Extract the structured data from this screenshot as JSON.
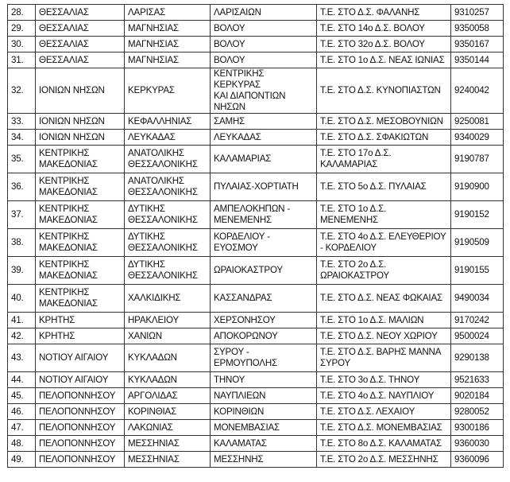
{
  "rows": [
    {
      "num": "28.",
      "region": "ΘΕΣΣΑΛΙΑΣ",
      "unit": "ΛΑΡΙΣΑΣ",
      "municipality": "ΛΑΡΙΣΑΙΩΝ",
      "school": "Τ.Ε. ΣΤΟ Δ.Σ. ΦΑΛΑΝΗΣ",
      "code": "9310257"
    },
    {
      "num": "29.",
      "region": "ΘΕΣΣΑΛΙΑΣ",
      "unit": "ΜΑΓΝΗΣΙΑΣ",
      "municipality": "ΒΟΛΟΥ",
      "school": "Τ.Ε. ΣΤΟ 14ο Δ.Σ. ΒΟΛΟΥ",
      "code": "9350058"
    },
    {
      "num": "30.",
      "region": "ΘΕΣΣΑΛΙΑΣ",
      "unit": "ΜΑΓΝΗΣΙΑΣ",
      "municipality": "ΒΟΛΟΥ",
      "school": "Τ.Ε. ΣΤΟ 32ο Δ.Σ. ΒΟΛΟΥ",
      "code": "9350167"
    },
    {
      "num": "31.",
      "region": "ΘΕΣΣΑΛΙΑΣ",
      "unit": "ΜΑΓΝΗΣΙΑΣ",
      "municipality": "ΒΟΛΟΥ",
      "school": "Τ.Ε. ΣΤΟ 1ο Δ.Σ. ΝΕΑΣ ΙΩΝΙΑΣ",
      "code": "9350144"
    },
    {
      "num": "32.",
      "region": "ΙΟΝΙΩΝ ΝΗΣΩΝ",
      "unit": "ΚΕΡΚΥΡΑΣ",
      "municipality": "ΚΕΝΤΡΙΚΗΣ ΚΕΡΚΥΡΑΣ\nΚΑΙ ΔΙΑΠΟΝΤΙΩΝ\nΝΗΣΩΝ",
      "school": "Τ.Ε. ΣΤΟ Δ.Σ. ΚΥΝΟΠΙΑΣΤΩΝ",
      "code": "9240042"
    },
    {
      "num": "33.",
      "region": "ΙΟΝΙΩΝ ΝΗΣΩΝ",
      "unit": "ΚΕΦΑΛΛΗΝΙΑΣ",
      "municipality": "ΣΑΜΗΣ",
      "school": "Τ.Ε. ΣΤΟ Δ.Σ. ΜΕΣΟΒΟΥΝΙΩΝ",
      "code": "9250081"
    },
    {
      "num": "34.",
      "region": "ΙΟΝΙΩΝ ΝΗΣΩΝ",
      "unit": "ΛΕΥΚΑΔΑΣ",
      "municipality": "ΛΕΥΚΑΔΑΣ",
      "school": "Τ.Ε. ΣΤΟ Δ.Σ. ΣΦΑΚΙΩΤΩΝ",
      "code": "9340029"
    },
    {
      "num": "35.",
      "region": "ΚΕΝΤΡΙΚΗΣ\nΜΑΚΕΔΟΝΙΑΣ",
      "unit": "ΑΝΑΤΟΛΙΚΗΣ\nΘΕΣΣΑΛΟΝΙΚΗΣ",
      "municipality": "ΚΑΛΑΜΑΡΙΑΣ",
      "school": "Τ.Ε. ΣΤΟ 17ο Δ.Σ.\nΚΑΛΑΜΑΡΙΑΣ",
      "code": "9190787"
    },
    {
      "num": "36.",
      "region": "ΚΕΝΤΡΙΚΗΣ\nΜΑΚΕΔΟΝΙΑΣ",
      "unit": "ΑΝΑΤΟΛΙΚΗΣ\nΘΕΣΣΑΛΟΝΙΚΗΣ",
      "municipality": "ΠΥΛΑΙΑΣ-ΧΟΡΤΙΑΤΗ",
      "school": "Τ.Ε. ΣΤΟ 5ο Δ.Σ. ΠΥΛΑΙΑΣ",
      "code": "9190900"
    },
    {
      "num": "37.",
      "region": "ΚΕΝΤΡΙΚΗΣ\nΜΑΚΕΔΟΝΙΑΣ",
      "unit": "ΔΥΤΙΚΗΣ\nΘΕΣΣΑΛΟΝΙΚΗΣ",
      "municipality": "ΑΜΠΕΛΟΚΗΠΩΝ -\nΜΕΝΕΜΕΝΗΣ",
      "school": "Τ.Ε. ΣΤΟ 1ο Δ.Σ.\nΜΕΝΕΜΕΝΗΣ",
      "code": "9190152"
    },
    {
      "num": "38.",
      "region": "ΚΕΝΤΡΙΚΗΣ\nΜΑΚΕΔΟΝΙΑΣ",
      "unit": "ΔΥΤΙΚΗΣ\nΘΕΣΣΑΛΟΝΙΚΗΣ",
      "municipality": "ΚΟΡΔΕΛΙΟΥ -\nΕΥΟΣΜΟΥ",
      "school": "Τ.Ε. ΣΤΟ 4ο Δ.Σ. ΕΛΕΥΘΕΡΙΟΥ\n- ΚΟΡΔΕΛΙΟΥ",
      "code": "9190509"
    },
    {
      "num": "39.",
      "region": "ΚΕΝΤΡΙΚΗΣ\nΜΑΚΕΔΟΝΙΑΣ",
      "unit": "ΔΥΤΙΚΗΣ\nΘΕΣΣΑΛΟΝΙΚΗΣ",
      "municipality": "ΩΡΑΙΟΚΑΣΤΡΟΥ",
      "school": "Τ.Ε. ΣΤΟ 2ο Δ.Σ.\nΩΡΑΙΟΚΑΣΤΡΟΥ",
      "code": "9190155"
    },
    {
      "num": "40.",
      "region": "ΚΕΝΤΡΙΚΗΣ\nΜΑΚΕΔΟΝΙΑΣ",
      "unit": "ΧΑΛΚΙΔΙΚΗΣ",
      "municipality": "ΚΑΣΣΑΝΔΡΑΣ",
      "school": "Τ.Ε. ΣΤΟ Δ.Σ. ΝΕΑΣ ΦΩΚΑΙΑΣ",
      "code": "9490034"
    },
    {
      "num": "41.",
      "region": "ΚΡΗΤΗΣ",
      "unit": "ΗΡΑΚΛΕΙΟΥ",
      "municipality": "ΧΕΡΣΟΝΗΣΟΥ",
      "school": "Τ.Ε. ΣΤΟ 1ο Δ.Σ. ΜΑΛΙΩΝ",
      "code": "9170242"
    },
    {
      "num": "42.",
      "region": "ΚΡΗΤΗΣ",
      "unit": "ΧΑΝΙΩΝ",
      "municipality": "ΑΠΟΚΟΡΩΝΟΥ",
      "school": "Τ.Ε. ΣΤΟ Δ.Σ. ΝΕΟΥ ΧΩΡΙΟΥ",
      "code": "9500024"
    },
    {
      "num": "43.",
      "region": "ΝΟΤΙΟΥ ΑΙΓΑΙΟΥ",
      "unit": "ΚΥΚΛΑΔΩΝ",
      "municipality": "ΣΥΡΟΥ -\nΕΡΜΟΥΠΟΛΗΣ",
      "school": "Τ.Ε. ΣΤΟ Δ.Σ. ΒΑΡΗΣ ΜΑΝΝΑ\nΣΥΡΟΥ",
      "code": "9290138"
    },
    {
      "num": "44.",
      "region": "ΝΟΤΙΟΥ ΑΙΓΑΙΟΥ",
      "unit": "ΚΥΚΛΑΔΩΝ",
      "municipality": "ΤΗΝΟΥ",
      "school": "Τ.Ε. ΣΤΟ 3ο Δ.Σ. ΤΗΝΟΥ",
      "code": "9521633"
    },
    {
      "num": "45.",
      "region": "ΠΕΛΟΠΟΝΝΗΣΟΥ",
      "unit": "ΑΡΓΟΛΙΔΑΣ",
      "municipality": "ΝΑΥΠΛΙΕΩΝ",
      "school": "Τ.Ε. ΣΤΟ 4ο Δ.Σ. ΝΑΥΠΛΙΟΥ",
      "code": "9020184"
    },
    {
      "num": "46.",
      "region": "ΠΕΛΟΠΟΝΝΗΣΟΥ",
      "unit": "ΚΟΡΙΝΘΙΑΣ",
      "municipality": "ΚΟΡΙΝΘΙΩΝ",
      "school": "Τ.Ε. ΣΤΟ Δ.Σ. ΛΕΧΑΙΟΥ",
      "code": "9280052"
    },
    {
      "num": "47.",
      "region": "ΠΕΛΟΠΟΝΝΗΣΟΥ",
      "unit": "ΛΑΚΩΝΙΑΣ",
      "municipality": "ΜΟΝΕΜΒΑΣΙΑΣ",
      "school": "Τ.Ε. ΣΤΟ Δ.Σ. ΜΟΝΕΜΒΑΣΙΑΣ",
      "code": "9300186"
    },
    {
      "num": "48.",
      "region": "ΠΕΛΟΠΟΝΝΗΣΟΥ",
      "unit": "ΜΕΣΣΗΝΙΑΣ",
      "municipality": "ΚΑΛΑΜΑΤΑΣ",
      "school": "Τ.Ε. ΣΤΟ 8ο Δ.Σ. ΚΑΛΑΜΑΤΑΣ",
      "code": "9360030"
    },
    {
      "num": "49.",
      "region": "ΠΕΛΟΠΟΝΝΗΣΟΥ",
      "unit": "ΜΕΣΣΗΝΙΑΣ",
      "municipality": "ΜΕΣΣΗΝΗΣ",
      "school": "Τ.Ε. ΣΤΟ 2ο Δ.Σ. ΜΕΣΣΗΝΗΣ",
      "code": "9360096"
    }
  ]
}
